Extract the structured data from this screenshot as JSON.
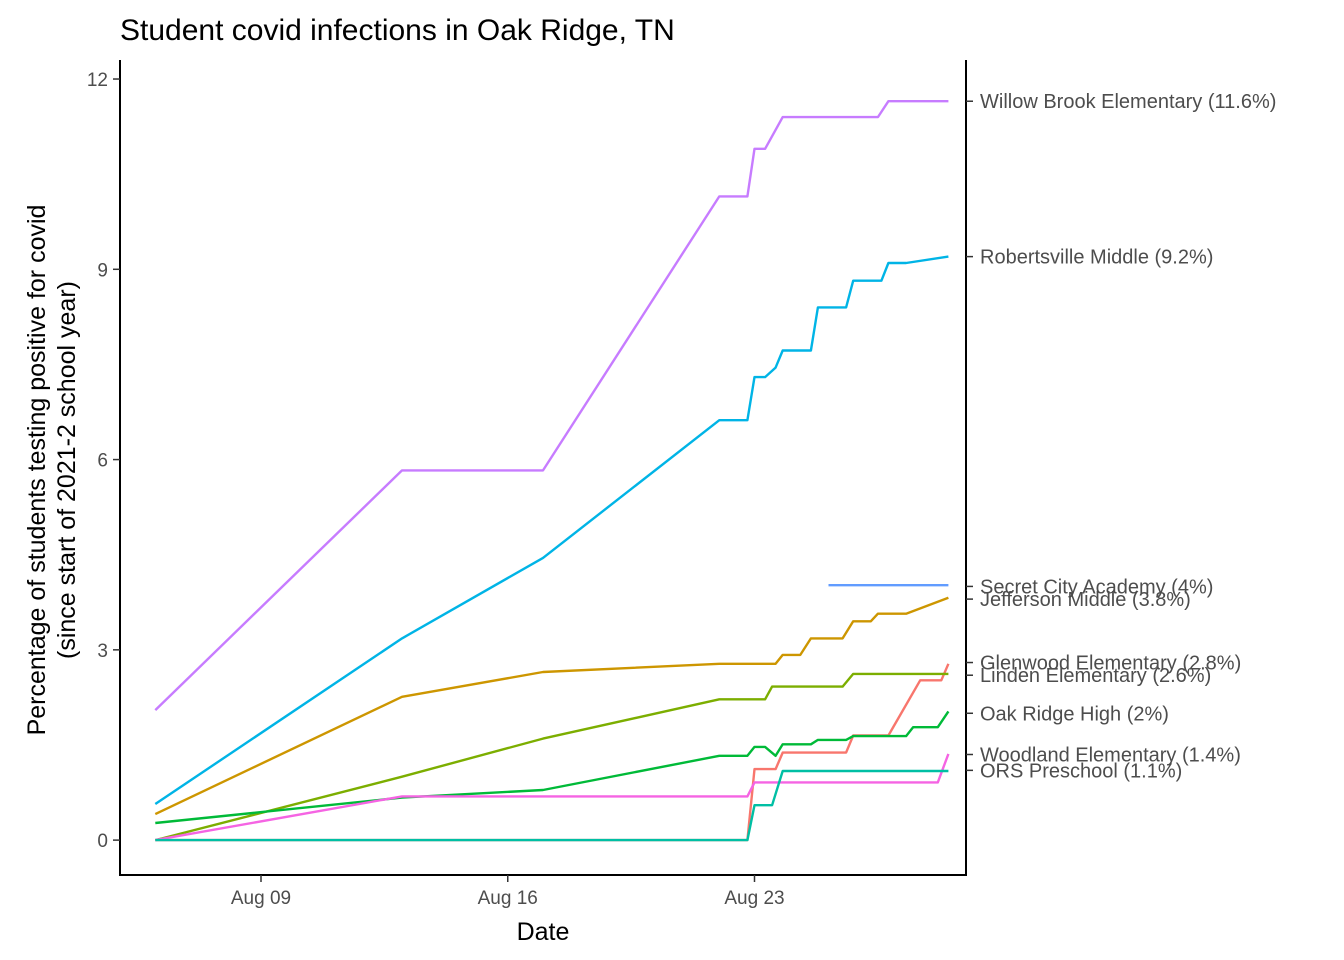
{
  "chart_data": {
    "type": "line",
    "title": "Student covid infections in Oak Ridge, TN",
    "xlabel": "Date",
    "ylabel": "Percentage of students testing positive for covid",
    "ylabel_line2": "(since start of 2021-2 school year)",
    "x_type": "date",
    "xlim": [
      "2021-08-05",
      "2021-08-29"
    ],
    "ylim": [
      -0.55,
      12.3
    ],
    "x_ticks": [
      {
        "date": "2021-08-09",
        "label": "Aug 09"
      },
      {
        "date": "2021-08-16",
        "label": "Aug 16"
      },
      {
        "date": "2021-08-23",
        "label": "Aug 23"
      }
    ],
    "y_ticks": [
      {
        "value": 0,
        "label": "0"
      },
      {
        "value": 3,
        "label": "3"
      },
      {
        "value": 6,
        "label": "6"
      },
      {
        "value": 9,
        "label": "9"
      },
      {
        "value": 12,
        "label": "12"
      }
    ],
    "grid": false,
    "legend": "none",
    "series": [
      {
        "name": "Willow Brook Elementary",
        "end_label": "Willow Brook Elementary (11.6%)",
        "label_value": 11.65,
        "color": "#C77CFF",
        "points": [
          [
            "2021-08-06",
            2.05
          ],
          [
            "2021-08-13",
            5.83
          ],
          [
            "2021-08-17",
            5.83
          ],
          [
            "2021-08-22",
            10.15
          ],
          [
            "2021-08-22.8",
            10.15
          ],
          [
            "2021-08-23",
            10.9
          ],
          [
            "2021-08-23.3",
            10.9
          ],
          [
            "2021-08-23.8",
            11.4
          ],
          [
            "2021-08-26.5",
            11.4
          ],
          [
            "2021-08-26.8",
            11.65
          ],
          [
            "2021-08-28.5",
            11.65
          ]
        ]
      },
      {
        "name": "Robertsville Middle",
        "end_label": "Robertsville Middle (9.2%)",
        "label_value": 9.2,
        "color": "#00B4E6",
        "points": [
          [
            "2021-08-06",
            0.57
          ],
          [
            "2021-08-13",
            3.18
          ],
          [
            "2021-08-17",
            4.45
          ],
          [
            "2021-08-22",
            6.62
          ],
          [
            "2021-08-22.8",
            6.62
          ],
          [
            "2021-08-23",
            7.3
          ],
          [
            "2021-08-23.3",
            7.3
          ],
          [
            "2021-08-23.6",
            7.45
          ],
          [
            "2021-08-23.8",
            7.72
          ],
          [
            "2021-08-24.6",
            7.72
          ],
          [
            "2021-08-24.8",
            8.4
          ],
          [
            "2021-08-25.6",
            8.4
          ],
          [
            "2021-08-25.8",
            8.82
          ],
          [
            "2021-08-26.6",
            8.82
          ],
          [
            "2021-08-26.8",
            9.1
          ],
          [
            "2021-08-27.3",
            9.1
          ],
          [
            "2021-08-28.5",
            9.2
          ]
        ]
      },
      {
        "name": "Secret City Academy",
        "end_label": "Secret City Academy (4%)",
        "label_value": 4.0,
        "color": "#619CFF",
        "points": [
          [
            "2021-08-25.1",
            4.02
          ],
          [
            "2021-08-28.5",
            4.02
          ]
        ]
      },
      {
        "name": "Jefferson Middle",
        "end_label": "Jefferson Middle (3.8%)",
        "label_value": 3.8,
        "color": "#CD9600",
        "points": [
          [
            "2021-08-06",
            0.41
          ],
          [
            "2021-08-13",
            2.26
          ],
          [
            "2021-08-17",
            2.65
          ],
          [
            "2021-08-22",
            2.78
          ],
          [
            "2021-08-23.6",
            2.78
          ],
          [
            "2021-08-23.8",
            2.92
          ],
          [
            "2021-08-24.3",
            2.92
          ],
          [
            "2021-08-24.6",
            3.18
          ],
          [
            "2021-08-25.5",
            3.18
          ],
          [
            "2021-08-25.8",
            3.45
          ],
          [
            "2021-08-26.3",
            3.45
          ],
          [
            "2021-08-26.5",
            3.57
          ],
          [
            "2021-08-27.3",
            3.57
          ],
          [
            "2021-08-28.5",
            3.82
          ]
        ]
      },
      {
        "name": "Glenwood Elementary",
        "end_label": "Glenwood Elementary (2.8%)",
        "label_value": 2.8,
        "color": "#F8766D",
        "points": [
          [
            "2021-08-06",
            0.0
          ],
          [
            "2021-08-22.8",
            0.0
          ],
          [
            "2021-08-23",
            1.12
          ],
          [
            "2021-08-23.6",
            1.12
          ],
          [
            "2021-08-23.8",
            1.38
          ],
          [
            "2021-08-25.6",
            1.38
          ],
          [
            "2021-08-25.8",
            1.65
          ],
          [
            "2021-08-26.6",
            1.65
          ],
          [
            "2021-08-26.8",
            1.65
          ],
          [
            "2021-08-27.7",
            2.52
          ],
          [
            "2021-08-28.3",
            2.52
          ],
          [
            "2021-08-28.5",
            2.78
          ]
        ]
      },
      {
        "name": "Linden Elementary",
        "end_label": "Linden Elementary (2.6%)",
        "label_value": 2.6,
        "color": "#7CAE00",
        "points": [
          [
            "2021-08-06",
            0.0
          ],
          [
            "2021-08-13",
            1.0
          ],
          [
            "2021-08-17",
            1.6
          ],
          [
            "2021-08-22",
            2.22
          ],
          [
            "2021-08-23.3",
            2.22
          ],
          [
            "2021-08-23.5",
            2.42
          ],
          [
            "2021-08-25.5",
            2.42
          ],
          [
            "2021-08-25.8",
            2.62
          ],
          [
            "2021-08-28.5",
            2.62
          ]
        ]
      },
      {
        "name": "Oak Ridge High",
        "end_label": "Oak Ridge High (2%)",
        "label_value": 2.0,
        "color": "#00BA38",
        "points": [
          [
            "2021-08-06",
            0.27
          ],
          [
            "2021-08-13",
            0.67
          ],
          [
            "2021-08-17",
            0.79
          ],
          [
            "2021-08-22",
            1.33
          ],
          [
            "2021-08-22.8",
            1.33
          ],
          [
            "2021-08-23",
            1.47
          ],
          [
            "2021-08-23.3",
            1.47
          ],
          [
            "2021-08-23.6",
            1.33
          ],
          [
            "2021-08-23.8",
            1.51
          ],
          [
            "2021-08-24.6",
            1.51
          ],
          [
            "2021-08-24.8",
            1.58
          ],
          [
            "2021-08-25.6",
            1.58
          ],
          [
            "2021-08-25.8",
            1.64
          ],
          [
            "2021-08-27.3",
            1.64
          ],
          [
            "2021-08-27.5",
            1.78
          ],
          [
            "2021-08-28.2",
            1.78
          ],
          [
            "2021-08-28.5",
            2.03
          ]
        ]
      },
      {
        "name": "Woodland Elementary",
        "end_label": "Woodland Elementary (1.4%)",
        "label_value": 1.35,
        "color": "#F564E3",
        "points": [
          [
            "2021-08-06",
            0.0
          ],
          [
            "2021-08-13",
            0.69
          ],
          [
            "2021-08-22.8",
            0.69
          ],
          [
            "2021-08-23",
            0.91
          ],
          [
            "2021-08-28.2",
            0.91
          ],
          [
            "2021-08-28.5",
            1.36
          ]
        ]
      },
      {
        "name": "ORS Preschool",
        "end_label": "ORS Preschool (1.1%)",
        "label_value": 1.1,
        "color": "#00BFA4",
        "points": [
          [
            "2021-08-06",
            0.0
          ],
          [
            "2021-08-22.8",
            0.0
          ],
          [
            "2021-08-23",
            0.55
          ],
          [
            "2021-08-23.5",
            0.55
          ],
          [
            "2021-08-23.8",
            1.09
          ],
          [
            "2021-08-28.5",
            1.09
          ]
        ]
      }
    ]
  }
}
